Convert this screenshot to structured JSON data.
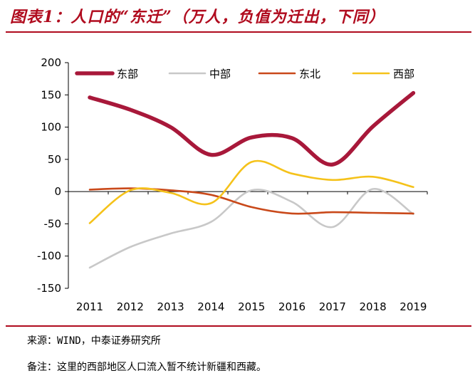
{
  "title": "图表1：人口的“东迁”（万人，负值为迁出，下同）",
  "chart_data": {
    "type": "line",
    "smooth": true,
    "categories": [
      "2011",
      "2012",
      "2013",
      "2014",
      "2015",
      "2016",
      "2017",
      "2018",
      "2019"
    ],
    "ylim": [
      -150,
      200
    ],
    "yticks": [
      -150,
      -100,
      -50,
      0,
      50,
      100,
      150,
      200
    ],
    "legend_position": "top",
    "series": [
      {
        "name": "东部",
        "color": "#a8183a",
        "width": "thick",
        "values": [
          146,
          127,
          100,
          57,
          84,
          83,
          42,
          101,
          153
        ]
      },
      {
        "name": "中部",
        "color": "#c8c8c8",
        "width": "normal",
        "values": [
          -118,
          -86,
          -65,
          -47,
          2,
          -16,
          -55,
          4,
          -35
        ]
      },
      {
        "name": "东北",
        "color": "#c9491a",
        "width": "normal",
        "values": [
          3,
          5,
          2,
          -5,
          -24,
          -34,
          -32,
          -33,
          -34
        ]
      },
      {
        "name": "西部",
        "color": "#f5c21a",
        "width": "normal",
        "values": [
          -49,
          2,
          -2,
          -18,
          46,
          28,
          18,
          23,
          7
        ]
      }
    ]
  },
  "notes": {
    "source": "来源：WIND，中泰证券研究所",
    "remark": "备注：这里的西部地区人口流入暂不统计新疆和西藏。"
  }
}
